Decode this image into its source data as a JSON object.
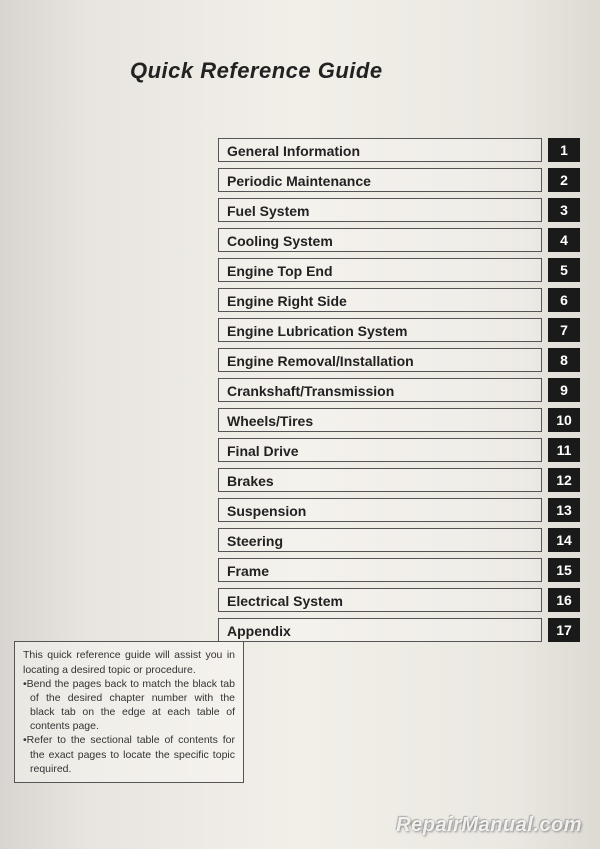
{
  "title": "Quick Reference Guide",
  "toc": [
    {
      "label": "General Information",
      "num": "1"
    },
    {
      "label": "Periodic Maintenance",
      "num": "2"
    },
    {
      "label": "Fuel System",
      "num": "3"
    },
    {
      "label": "Cooling System",
      "num": "4"
    },
    {
      "label": "Engine Top End",
      "num": "5"
    },
    {
      "label": "Engine Right Side",
      "num": "6"
    },
    {
      "label": "Engine Lubrication System",
      "num": "7"
    },
    {
      "label": "Engine Removal/Installation",
      "num": "8"
    },
    {
      "label": "Crankshaft/Transmission",
      "num": "9"
    },
    {
      "label": "Wheels/Tires",
      "num": "10"
    },
    {
      "label": "Final Drive",
      "num": "11"
    },
    {
      "label": "Brakes",
      "num": "12"
    },
    {
      "label": "Suspension",
      "num": "13"
    },
    {
      "label": "Steering",
      "num": "14"
    },
    {
      "label": "Frame",
      "num": "15"
    },
    {
      "label": "Electrical System",
      "num": "16"
    },
    {
      "label": "Appendix",
      "num": "17"
    }
  ],
  "note": {
    "intro": "This quick reference guide will assist you in locating a desired topic or procedure.",
    "b1": "•Bend the pages back to match the black tab of the desired chapter number with the black tab on the edge at each table of contents page.",
    "b2": "•Refer to the sectional table of contents for the exact pages to locate the specific topic required."
  },
  "watermark": "RepairManual.com"
}
